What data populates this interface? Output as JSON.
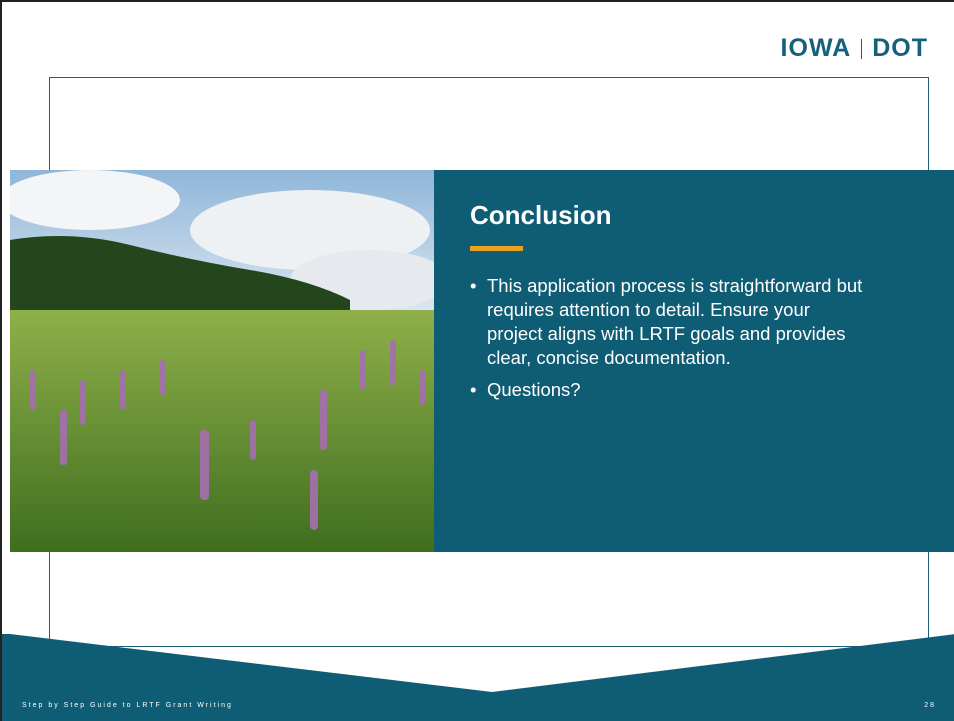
{
  "logo": {
    "left": "IOWA",
    "right": "DOT"
  },
  "slide": {
    "title": "Conclusion",
    "bullets": [
      "This application process is straightforward but requires attention to detail. Ensure your project aligns with LRTF goals and provides clear, concise documentation.",
      "Questions?"
    ]
  },
  "footer": {
    "text": "Step by Step Guide to LRTF Grant Writing",
    "page": "28"
  }
}
